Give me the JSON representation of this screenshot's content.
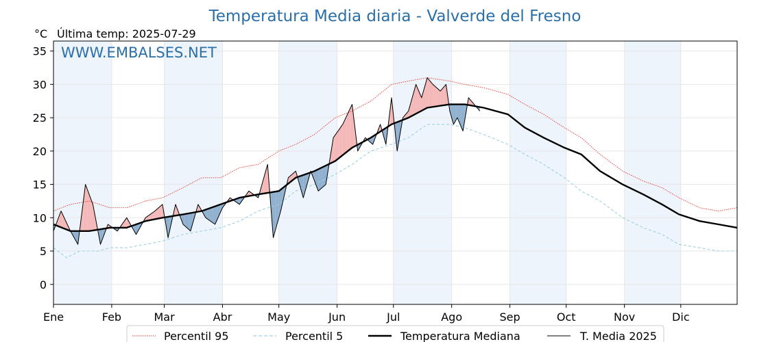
{
  "title": "Temperatura Media diaria - Valverde del Fresno",
  "unit_label": "°C",
  "last_temp": "Última temp: 2025-07-29",
  "watermark": "WWW.EMBALSES.NET",
  "colors": {
    "title": "#2a6fa8",
    "p95": "#e8302a",
    "p5": "#9ecfe0",
    "median": "#000000",
    "current": "#000000",
    "above_fill": "#f4b8b8",
    "below_fill": "#8fb0cf",
    "month_band": "#eef4fb"
  },
  "chart_data": {
    "type": "line",
    "ylim": [
      -3,
      36.5
    ],
    "y_ticks": [
      "0",
      "5",
      "10",
      "15",
      "20",
      "25",
      "30",
      "35"
    ],
    "month_labels": [
      "Ene",
      "Feb",
      "Mar",
      "Abr",
      "May",
      "Jun",
      "Jul",
      "Ago",
      "Sep",
      "Oct",
      "Nov",
      "Dic"
    ],
    "grid": true,
    "legend_position": "bottom",
    "series": [
      {
        "name": "Percentil 95",
        "style": "dotted-red",
        "points": [
          [
            1,
            11
          ],
          [
            10,
            12
          ],
          [
            20,
            12.5
          ],
          [
            31,
            11.5
          ],
          [
            40,
            11.5
          ],
          [
            50,
            12.5
          ],
          [
            59,
            13
          ],
          [
            70,
            14.5
          ],
          [
            80,
            16
          ],
          [
            90,
            16
          ],
          [
            100,
            17.5
          ],
          [
            110,
            18
          ],
          [
            121,
            20
          ],
          [
            130,
            21
          ],
          [
            140,
            22.5
          ],
          [
            151,
            25
          ],
          [
            160,
            26
          ],
          [
            170,
            27.5
          ],
          [
            181,
            30
          ],
          [
            190,
            30.5
          ],
          [
            200,
            31
          ],
          [
            212,
            30.5
          ],
          [
            220,
            30
          ],
          [
            230,
            29.5
          ],
          [
            243,
            28.5
          ],
          [
            252,
            27
          ],
          [
            262,
            25.5
          ],
          [
            273,
            23.5
          ],
          [
            282,
            22
          ],
          [
            292,
            19.5
          ],
          [
            304,
            17
          ],
          [
            315,
            15.5
          ],
          [
            325,
            14.5
          ],
          [
            334,
            13
          ],
          [
            345,
            11.5
          ],
          [
            355,
            11
          ],
          [
            365,
            11.5
          ]
        ]
      },
      {
        "name": "Percentil 5",
        "style": "dashed-lightblue",
        "points": [
          [
            1,
            5.5
          ],
          [
            8,
            4
          ],
          [
            15,
            5
          ],
          [
            25,
            5
          ],
          [
            31,
            5.5
          ],
          [
            40,
            5.5
          ],
          [
            50,
            6
          ],
          [
            59,
            6.5
          ],
          [
            70,
            7.5
          ],
          [
            80,
            8
          ],
          [
            90,
            8.5
          ],
          [
            100,
            9.5
          ],
          [
            110,
            11
          ],
          [
            121,
            12
          ],
          [
            130,
            14
          ],
          [
            140,
            15
          ],
          [
            151,
            16.5
          ],
          [
            160,
            18
          ],
          [
            170,
            20
          ],
          [
            181,
            21
          ],
          [
            190,
            22
          ],
          [
            200,
            24
          ],
          [
            212,
            24
          ],
          [
            220,
            23.5
          ],
          [
            230,
            22.5
          ],
          [
            243,
            21
          ],
          [
            252,
            19.5
          ],
          [
            262,
            18
          ],
          [
            273,
            16
          ],
          [
            282,
            14
          ],
          [
            292,
            12.5
          ],
          [
            304,
            10
          ],
          [
            315,
            8.5
          ],
          [
            325,
            7.5
          ],
          [
            334,
            6
          ],
          [
            345,
            5.5
          ],
          [
            355,
            5
          ],
          [
            365,
            5
          ]
        ]
      },
      {
        "name": "Temperatura Mediana",
        "style": "thick-black",
        "points": [
          [
            1,
            9
          ],
          [
            10,
            8
          ],
          [
            20,
            8
          ],
          [
            31,
            8.5
          ],
          [
            40,
            8.5
          ],
          [
            50,
            9.5
          ],
          [
            59,
            10
          ],
          [
            70,
            10.5
          ],
          [
            80,
            11
          ],
          [
            90,
            12
          ],
          [
            100,
            13
          ],
          [
            110,
            13.5
          ],
          [
            121,
            14
          ],
          [
            130,
            16
          ],
          [
            140,
            17
          ],
          [
            151,
            18.5
          ],
          [
            160,
            20.5
          ],
          [
            170,
            22
          ],
          [
            181,
            24
          ],
          [
            190,
            25
          ],
          [
            200,
            26.5
          ],
          [
            212,
            27
          ],
          [
            220,
            27
          ],
          [
            230,
            26.5
          ],
          [
            243,
            25.5
          ],
          [
            252,
            23.5
          ],
          [
            262,
            22
          ],
          [
            273,
            20.5
          ],
          [
            282,
            19.5
          ],
          [
            292,
            17
          ],
          [
            304,
            15
          ],
          [
            315,
            13.5
          ],
          [
            325,
            12
          ],
          [
            334,
            10.5
          ],
          [
            345,
            9.5
          ],
          [
            355,
            9
          ],
          [
            365,
            8.5
          ]
        ]
      },
      {
        "name": "T. Media 2025",
        "style": "thin-black",
        "points": [
          [
            1,
            8
          ],
          [
            5,
            11
          ],
          [
            10,
            8
          ],
          [
            14,
            6
          ],
          [
            18,
            15
          ],
          [
            22,
            12
          ],
          [
            26,
            6
          ],
          [
            30,
            9
          ],
          [
            35,
            8
          ],
          [
            40,
            10
          ],
          [
            45,
            7.5
          ],
          [
            50,
            10
          ],
          [
            55,
            11
          ],
          [
            59,
            12
          ],
          [
            62,
            7
          ],
          [
            66,
            12
          ],
          [
            70,
            9
          ],
          [
            74,
            8
          ],
          [
            78,
            12
          ],
          [
            82,
            10
          ],
          [
            87,
            9
          ],
          [
            91,
            11.5
          ],
          [
            95,
            13
          ],
          [
            100,
            12
          ],
          [
            105,
            14
          ],
          [
            110,
            13
          ],
          [
            115,
            18
          ],
          [
            118,
            7
          ],
          [
            122,
            11
          ],
          [
            126,
            16
          ],
          [
            130,
            17
          ],
          [
            134,
            13
          ],
          [
            138,
            17
          ],
          [
            142,
            14
          ],
          [
            146,
            15
          ],
          [
            150,
            22
          ],
          [
            155,
            24
          ],
          [
            160,
            27
          ],
          [
            163,
            20
          ],
          [
            167,
            22
          ],
          [
            171,
            21
          ],
          [
            175,
            24
          ],
          [
            178,
            21
          ],
          [
            181,
            28
          ],
          [
            184,
            20
          ],
          [
            187,
            25
          ],
          [
            190,
            26
          ],
          [
            194,
            30
          ],
          [
            197,
            28
          ],
          [
            200,
            31
          ],
          [
            203,
            30
          ],
          [
            207,
            29
          ],
          [
            210,
            30
          ],
          [
            212,
            26
          ],
          [
            214,
            24
          ],
          [
            216,
            25
          ],
          [
            219,
            23
          ],
          [
            222,
            28
          ],
          [
            225,
            27
          ],
          [
            228,
            26
          ]
        ]
      }
    ]
  },
  "legend": {
    "p95": "Percentil 95",
    "p5": "Percentil 5",
    "median": "Temperatura Mediana",
    "current": "T. Media 2025"
  }
}
